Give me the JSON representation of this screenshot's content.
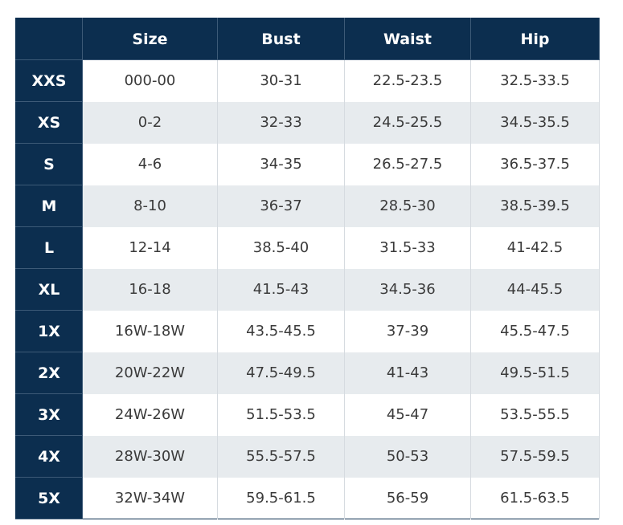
{
  "table": {
    "columns": [
      "Size",
      "Bust",
      "Waist",
      "Hip"
    ],
    "rows": [
      {
        "label": "XXS",
        "cells": [
          "000-00",
          "30-31",
          "22.5-23.5",
          "32.5-33.5"
        ]
      },
      {
        "label": "XS",
        "cells": [
          "0-2",
          "32-33",
          "24.5-25.5",
          "34.5-35.5"
        ]
      },
      {
        "label": "S",
        "cells": [
          "4-6",
          "34-35",
          "26.5-27.5",
          "36.5-37.5"
        ]
      },
      {
        "label": "M",
        "cells": [
          "8-10",
          "36-37",
          "28.5-30",
          "38.5-39.5"
        ]
      },
      {
        "label": "L",
        "cells": [
          "12-14",
          "38.5-40",
          "31.5-33",
          "41-42.5"
        ]
      },
      {
        "label": "XL",
        "cells": [
          "16-18",
          "41.5-43",
          "34.5-36",
          "44-45.5"
        ]
      },
      {
        "label": "1X",
        "cells": [
          "16W-18W",
          "43.5-45.5",
          "37-39",
          "45.5-47.5"
        ]
      },
      {
        "label": "2X",
        "cells": [
          "20W-22W",
          "47.5-49.5",
          "41-43",
          "49.5-51.5"
        ]
      },
      {
        "label": "3X",
        "cells": [
          "24W-26W",
          "51.5-53.5",
          "45-47",
          "53.5-55.5"
        ]
      },
      {
        "label": "4X",
        "cells": [
          "28W-30W",
          "55.5-57.5",
          "50-53",
          "57.5-59.5"
        ]
      },
      {
        "label": "5X",
        "cells": [
          "32W-34W",
          "59.5-61.5",
          "56-59",
          "61.5-63.5"
        ]
      }
    ]
  }
}
